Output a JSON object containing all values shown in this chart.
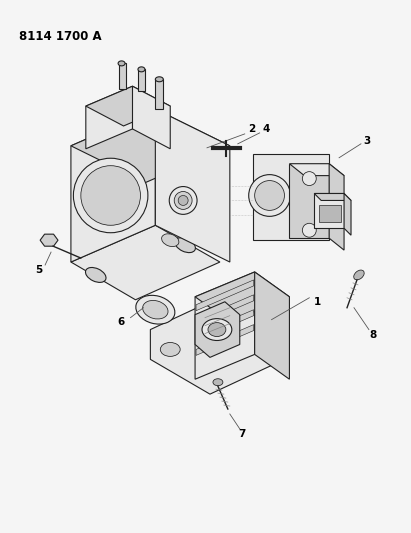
{
  "title": "8114 1700 A",
  "bg_color": "#f5f5f5",
  "fg_color": "#000000",
  "fig_width": 4.11,
  "fig_height": 5.33,
  "dpi": 100,
  "title_fontsize": 8.5,
  "lc": "#222222",
  "lw": 0.8,
  "fc_light": "#e8e8e8",
  "fc_mid": "#d0d0d0",
  "fc_dark": "#b8b8b8",
  "fc_very_dark": "#909090"
}
